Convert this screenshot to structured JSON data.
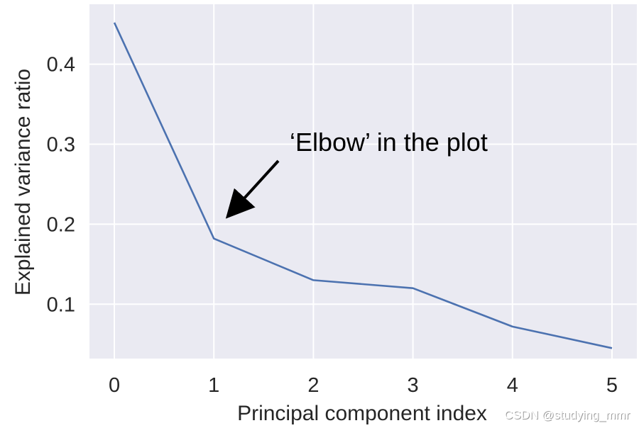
{
  "chart_data": {
    "type": "line",
    "title": "",
    "xlabel": "Principal component index",
    "ylabel": "Explained variance ratio",
    "x": [
      0,
      1,
      2,
      3,
      4,
      5
    ],
    "xticks": [
      "0",
      "1",
      "2",
      "3",
      "4",
      "5"
    ],
    "yticks": [
      0.1,
      0.2,
      0.3,
      0.4
    ],
    "ytick_labels": [
      "0.1",
      "0.2",
      "0.3",
      "0.4"
    ],
    "xlim": [
      -0.25,
      5.25
    ],
    "ylim": [
      0.032,
      0.475
    ],
    "grid": true,
    "series": [
      {
        "values": [
          0.452,
          0.182,
          0.13,
          0.12,
          0.072,
          0.045
        ]
      }
    ],
    "annotation": {
      "text": "‘Elbow’ in the plot",
      "target": [
        1,
        0.182
      ]
    }
  },
  "colors": {
    "plot_background": "#eaeaf2",
    "grid": "#ffffff",
    "line": "#4c72b0",
    "text": "#262626",
    "arrow": "#000000"
  },
  "watermark": "CSDN @studying_mmr"
}
